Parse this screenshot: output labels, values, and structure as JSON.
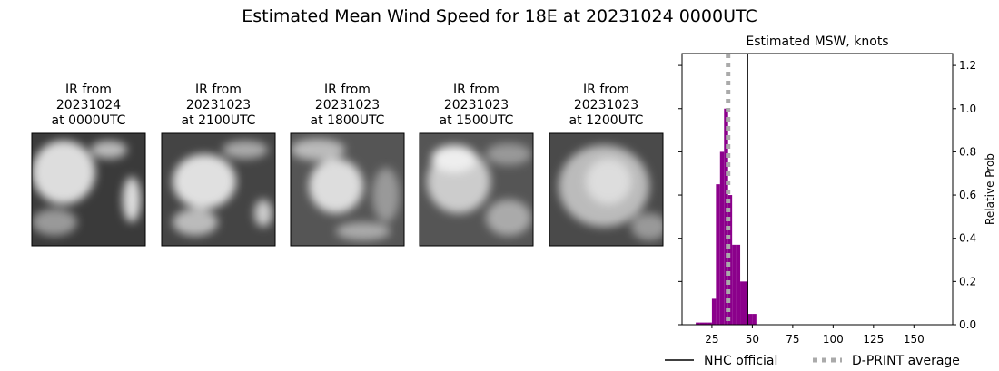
{
  "title": "Estimated Mean Wind Speed for 18E at 20231024 0000UTC",
  "panels": [
    {
      "lines": [
        "IR from",
        "20231024",
        "at 0000UTC"
      ]
    },
    {
      "lines": [
        "IR from",
        "20231023",
        "at 2100UTC"
      ]
    },
    {
      "lines": [
        "IR from",
        "20231023",
        "at 1800UTC"
      ]
    },
    {
      "lines": [
        "IR from",
        "20231023",
        "at 1500UTC"
      ]
    },
    {
      "lines": [
        "IR from",
        "20231023",
        "at 1200UTC"
      ]
    }
  ],
  "chart_data": {
    "type": "histogram",
    "title": "Estimated MSW, knots",
    "y_label": "Relative Prob",
    "bins": [
      15,
      17.5,
      20,
      22.5,
      25,
      27.5,
      30,
      32.5,
      35,
      37.5,
      40,
      42.5,
      45,
      47.5,
      50,
      52.5
    ],
    "values": [
      0.01,
      0.01,
      0.01,
      0.01,
      0.12,
      0.65,
      0.8,
      1.0,
      0.6,
      0.37,
      0.37,
      0.2,
      0.2,
      0.05,
      0.05
    ],
    "color": "#8b008b",
    "xlim": [
      6.5,
      174
    ],
    "ylim": [
      0,
      1.255
    ],
    "xticks": [
      25,
      50,
      75,
      100,
      125,
      150
    ],
    "yticks": [
      {
        "value": 0,
        "label": "0.0"
      },
      0.2,
      0.4,
      0.6,
      0.8,
      {
        "value": 1,
        "label": "1.0"
      },
      1.2
    ],
    "reference_lines": [
      {
        "name": "NHC official",
        "x": 47,
        "color": "#000000",
        "style": "solid"
      },
      {
        "name": "D-PRINT average",
        "x": 35,
        "color": "#aaaaaa",
        "style": "dotted"
      }
    ],
    "legend": "bottom"
  }
}
